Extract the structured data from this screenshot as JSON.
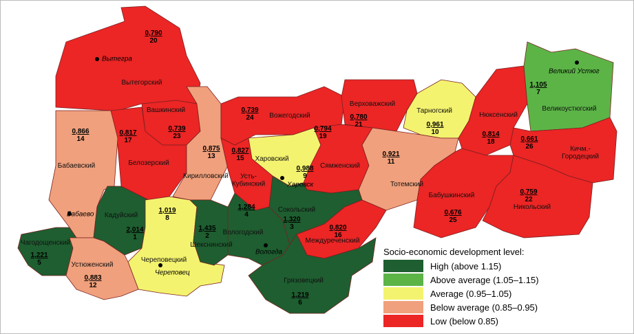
{
  "districts": [
    {
      "name": "Вытегорский",
      "index": "0,790",
      "rank": "20"
    },
    {
      "name": "Вашкинский",
      "index": "0,739",
      "rank": "23"
    },
    {
      "name": "Белозерский",
      "index": "0,817",
      "rank": "17"
    },
    {
      "name": "Бабаевский",
      "index": "0,866",
      "rank": "14"
    },
    {
      "name": "Кирилловский",
      "index": "0,875",
      "rank": "13"
    },
    {
      "name": "Вожегодский",
      "index": "0,739",
      "rank": "24"
    },
    {
      "name": "Усть-Кубинский",
      "index": "0,827",
      "rank": "15"
    },
    {
      "name": "Харовский",
      "index": "0,988",
      "rank": "9"
    },
    {
      "name": "Верховажский",
      "index": "0,780",
      "rank": "21"
    },
    {
      "name": "Сямженский",
      "index": "0,794",
      "rank": "19"
    },
    {
      "name": "Тарногский",
      "index": "0,961",
      "rank": "10"
    },
    {
      "name": "Нюксенский",
      "index": "0,814",
      "rank": "18"
    },
    {
      "name": "Великоустюгский",
      "index": "1,105",
      "rank": "7"
    },
    {
      "name": "Кичм.-Городецкий",
      "index": "0,661",
      "rank": "26"
    },
    {
      "name": "Тотемский",
      "index": "0,921",
      "rank": "11"
    },
    {
      "name": "Бабушкинский",
      "index": "0,676",
      "rank": "25"
    },
    {
      "name": "Никольский",
      "index": "0,759",
      "rank": "22"
    },
    {
      "name": "Кадуйский",
      "index": "2,014",
      "rank": "1"
    },
    {
      "name": "Череповецкий",
      "index": "1,019",
      "rank": "8"
    },
    {
      "name": "Шекснинский",
      "index": "1,435",
      "rank": "2"
    },
    {
      "name": "Вологодский",
      "index": "1,284",
      "rank": "4"
    },
    {
      "name": "Сокольский",
      "index": "1,320",
      "rank": "3"
    },
    {
      "name": "Междуреченский",
      "index": "0,820",
      "rank": "16"
    },
    {
      "name": "Грязовецкий",
      "index": "1,219",
      "rank": "6"
    },
    {
      "name": "Чагодощенский",
      "index": "1,221",
      "rank": "5"
    },
    {
      "name": "Устюженский",
      "index": "0,883",
      "rank": "12"
    }
  ],
  "cities": [
    "Вытегра",
    "Великий Устюг",
    "Харовск",
    "Бабаево",
    "Череповец",
    "Вологда"
  ],
  "legend": {
    "title": "Socio-economic development level:",
    "items": [
      {
        "label": "High (above 1.15)",
        "color": "#1e5e30"
      },
      {
        "label": "Above average (1.05–1.15)",
        "color": "#5cb447"
      },
      {
        "label": "Average (0.95–1.05)",
        "color": "#f4f36f"
      },
      {
        "label": "Below average (0.85–0.95)",
        "color": "#f0a07c"
      },
      {
        "label": "Low (below 0.85)",
        "color": "#ec2525"
      }
    ]
  }
}
